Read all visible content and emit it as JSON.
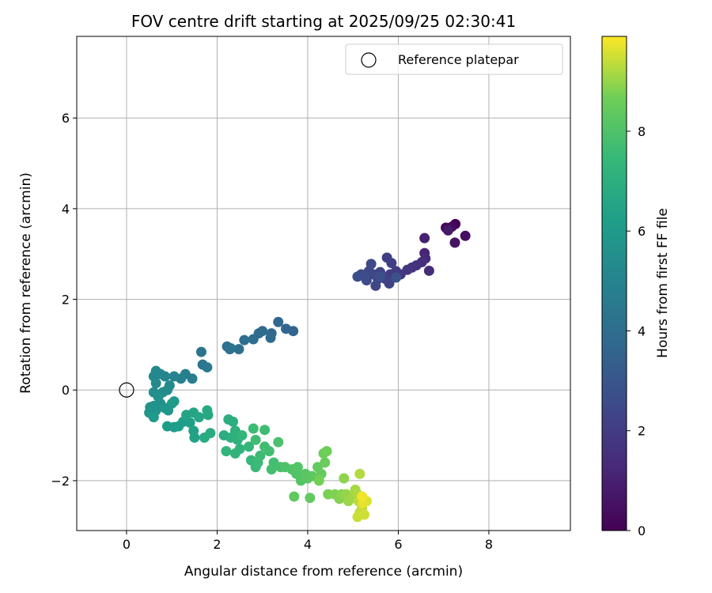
{
  "chart_data": {
    "type": "scatter",
    "title": "FOV centre drift starting at 2025/09/25 02:30:41",
    "xlabel": "Angular distance from reference (arcmin)",
    "ylabel": "Rotation from reference (arcmin)",
    "xlim": [
      -1.1,
      9.8
    ],
    "ylim": [
      -3.1,
      7.8
    ],
    "xticks": [
      0,
      2,
      4,
      6,
      8
    ],
    "yticks": [
      -2,
      0,
      2,
      4,
      6
    ],
    "xtick_labels": [
      "0",
      "2",
      "4",
      "6",
      "8"
    ],
    "ytick_labels": [
      "−2",
      "0",
      "2",
      "4",
      "6"
    ],
    "grid": true,
    "legend": {
      "placement": "top-right",
      "entries": [
        "Reference platepar"
      ]
    },
    "reference_point": {
      "x": 0.0,
      "y": 0.0,
      "label": "Reference platepar"
    },
    "colorbar": {
      "label": "Hours from first FF file",
      "range": [
        0,
        9.9
      ],
      "ticks": [
        0,
        2,
        4,
        6,
        8
      ],
      "tick_labels": [
        "0",
        "2",
        "4",
        "6",
        "8"
      ],
      "colormap": "viridis"
    },
    "points": [
      {
        "x": 7.26,
        "y": 3.66,
        "c": 0.0
      },
      {
        "x": 7.05,
        "y": 3.58,
        "c": 0.15
      },
      {
        "x": 7.18,
        "y": 3.6,
        "c": 0.3
      },
      {
        "x": 7.48,
        "y": 3.4,
        "c": 0.45
      },
      {
        "x": 7.25,
        "y": 3.25,
        "c": 0.6
      },
      {
        "x": 7.1,
        "y": 3.52,
        "c": 0.75
      },
      {
        "x": 6.58,
        "y": 3.35,
        "c": 1.0
      },
      {
        "x": 6.58,
        "y": 3.02,
        "c": 1.15
      },
      {
        "x": 6.6,
        "y": 2.9,
        "c": 1.3
      },
      {
        "x": 6.68,
        "y": 2.63,
        "c": 1.4
      },
      {
        "x": 6.52,
        "y": 2.82,
        "c": 1.5
      },
      {
        "x": 6.4,
        "y": 2.75,
        "c": 1.6
      },
      {
        "x": 6.3,
        "y": 2.7,
        "c": 1.7
      },
      {
        "x": 6.2,
        "y": 2.65,
        "c": 1.75
      },
      {
        "x": 6.05,
        "y": 2.55,
        "c": 1.85
      },
      {
        "x": 5.95,
        "y": 2.62,
        "c": 1.9
      },
      {
        "x": 5.82,
        "y": 2.55,
        "c": 2.0
      },
      {
        "x": 5.75,
        "y": 2.92,
        "c": 2.05
      },
      {
        "x": 5.85,
        "y": 2.8,
        "c": 2.1
      },
      {
        "x": 5.72,
        "y": 2.45,
        "c": 2.15
      },
      {
        "x": 5.8,
        "y": 2.35,
        "c": 2.2
      },
      {
        "x": 5.6,
        "y": 2.6,
        "c": 2.25
      },
      {
        "x": 5.55,
        "y": 2.45,
        "c": 2.3
      },
      {
        "x": 5.5,
        "y": 2.3,
        "c": 2.35
      },
      {
        "x": 5.45,
        "y": 2.55,
        "c": 2.4
      },
      {
        "x": 5.35,
        "y": 2.62,
        "c": 2.45
      },
      {
        "x": 5.4,
        "y": 2.78,
        "c": 2.5
      },
      {
        "x": 5.3,
        "y": 2.42,
        "c": 2.55
      },
      {
        "x": 5.25,
        "y": 2.5,
        "c": 2.6
      },
      {
        "x": 5.18,
        "y": 2.55,
        "c": 2.65
      },
      {
        "x": 5.1,
        "y": 2.5,
        "c": 2.7
      },
      {
        "x": 5.6,
        "y": 2.5,
        "c": 2.75
      },
      {
        "x": 5.95,
        "y": 2.48,
        "c": 2.8
      },
      {
        "x": 3.68,
        "y": 1.3,
        "c": 3.6
      },
      {
        "x": 3.52,
        "y": 1.35,
        "c": 3.65
      },
      {
        "x": 3.35,
        "y": 1.5,
        "c": 3.7
      },
      {
        "x": 3.2,
        "y": 1.25,
        "c": 3.75
      },
      {
        "x": 3.18,
        "y": 1.15,
        "c": 3.8
      },
      {
        "x": 3.0,
        "y": 1.3,
        "c": 3.85
      },
      {
        "x": 2.92,
        "y": 1.25,
        "c": 3.9
      },
      {
        "x": 2.8,
        "y": 1.12,
        "c": 3.95
      },
      {
        "x": 2.6,
        "y": 1.1,
        "c": 4.0
      },
      {
        "x": 2.48,
        "y": 0.9,
        "c": 4.05
      },
      {
        "x": 2.28,
        "y": 0.9,
        "c": 4.1
      },
      {
        "x": 2.22,
        "y": 0.96,
        "c": 4.15
      },
      {
        "x": 2.3,
        "y": 0.92,
        "c": 4.2
      },
      {
        "x": 1.65,
        "y": 0.84,
        "c": 4.3
      },
      {
        "x": 1.68,
        "y": 0.56,
        "c": 4.4
      },
      {
        "x": 1.78,
        "y": 0.5,
        "c": 4.5
      },
      {
        "x": 1.45,
        "y": 0.25,
        "c": 4.7
      },
      {
        "x": 1.3,
        "y": 0.35,
        "c": 4.8
      },
      {
        "x": 1.2,
        "y": 0.25,
        "c": 4.9
      },
      {
        "x": 1.05,
        "y": 0.3,
        "c": 5.0
      },
      {
        "x": 0.85,
        "y": 0.3,
        "c": 5.1
      },
      {
        "x": 0.75,
        "y": 0.35,
        "c": 5.15
      },
      {
        "x": 0.65,
        "y": 0.42,
        "c": 5.2
      },
      {
        "x": 0.6,
        "y": 0.3,
        "c": 5.25
      },
      {
        "x": 0.65,
        "y": 0.15,
        "c": 5.3
      },
      {
        "x": 0.95,
        "y": 0.1,
        "c": 5.35
      },
      {
        "x": 0.9,
        "y": 0.0,
        "c": 5.4
      },
      {
        "x": 0.8,
        "y": -0.05,
        "c": 5.45
      },
      {
        "x": 0.6,
        "y": -0.05,
        "c": 5.5
      },
      {
        "x": 0.7,
        "y": -0.15,
        "c": 5.55
      },
      {
        "x": 0.75,
        "y": -0.3,
        "c": 5.6
      },
      {
        "x": 0.6,
        "y": -0.35,
        "c": 5.65
      },
      {
        "x": 0.52,
        "y": -0.38,
        "c": 5.7
      },
      {
        "x": 0.5,
        "y": -0.5,
        "c": 5.75
      },
      {
        "x": 0.65,
        "y": -0.45,
        "c": 5.8
      },
      {
        "x": 0.85,
        "y": -0.4,
        "c": 5.85
      },
      {
        "x": 0.92,
        "y": -0.45,
        "c": 5.9
      },
      {
        "x": 1.0,
        "y": -0.3,
        "c": 5.95
      },
      {
        "x": 1.05,
        "y": -0.25,
        "c": 6.0
      },
      {
        "x": 0.6,
        "y": -0.6,
        "c": 6.05
      },
      {
        "x": 0.9,
        "y": -0.8,
        "c": 6.1
      },
      {
        "x": 1.05,
        "y": -0.82,
        "c": 6.15
      },
      {
        "x": 1.15,
        "y": -0.8,
        "c": 6.2
      },
      {
        "x": 1.25,
        "y": -0.7,
        "c": 6.25
      },
      {
        "x": 1.4,
        "y": -0.72,
        "c": 6.3
      },
      {
        "x": 1.48,
        "y": -0.9,
        "c": 6.35
      },
      {
        "x": 1.5,
        "y": -1.05,
        "c": 6.4
      },
      {
        "x": 1.32,
        "y": -0.55,
        "c": 6.45
      },
      {
        "x": 1.48,
        "y": -0.5,
        "c": 6.5
      },
      {
        "x": 1.6,
        "y": -0.6,
        "c": 6.6
      },
      {
        "x": 1.8,
        "y": -0.55,
        "c": 6.7
      },
      {
        "x": 1.78,
        "y": -0.45,
        "c": 6.75
      },
      {
        "x": 1.72,
        "y": -1.05,
        "c": 6.8
      },
      {
        "x": 1.85,
        "y": -0.95,
        "c": 6.85
      },
      {
        "x": 2.15,
        "y": -1.0,
        "c": 6.9
      },
      {
        "x": 2.25,
        "y": -0.65,
        "c": 6.95
      },
      {
        "x": 2.35,
        "y": -0.7,
        "c": 7.0
      },
      {
        "x": 2.3,
        "y": -1.05,
        "c": 7.05
      },
      {
        "x": 2.4,
        "y": -0.9,
        "c": 7.1
      },
      {
        "x": 2.45,
        "y": -1.1,
        "c": 7.15
      },
      {
        "x": 2.5,
        "y": -1.3,
        "c": 7.2
      },
      {
        "x": 2.4,
        "y": -1.4,
        "c": 7.25
      },
      {
        "x": 2.2,
        "y": -1.35,
        "c": 7.3
      },
      {
        "x": 2.55,
        "y": -1.0,
        "c": 7.35
      },
      {
        "x": 2.7,
        "y": -1.25,
        "c": 7.4
      },
      {
        "x": 2.75,
        "y": -1.55,
        "c": 7.45
      },
      {
        "x": 2.85,
        "y": -1.7,
        "c": 7.5
      },
      {
        "x": 2.9,
        "y": -1.6,
        "c": 7.55
      },
      {
        "x": 2.95,
        "y": -1.45,
        "c": 7.6
      },
      {
        "x": 2.8,
        "y": -0.85,
        "c": 7.62
      },
      {
        "x": 3.05,
        "y": -0.88,
        "c": 7.64
      },
      {
        "x": 2.85,
        "y": -1.1,
        "c": 7.66
      },
      {
        "x": 3.05,
        "y": -1.25,
        "c": 7.68
      },
      {
        "x": 3.15,
        "y": -1.35,
        "c": 7.7
      },
      {
        "x": 3.25,
        "y": -1.6,
        "c": 7.75
      },
      {
        "x": 3.2,
        "y": -1.75,
        "c": 7.8
      },
      {
        "x": 3.4,
        "y": -1.7,
        "c": 7.85
      },
      {
        "x": 3.35,
        "y": -1.15,
        "c": 7.9
      },
      {
        "x": 3.5,
        "y": -1.7,
        "c": 7.95
      },
      {
        "x": 3.65,
        "y": -1.75,
        "c": 8.0
      },
      {
        "x": 3.75,
        "y": -1.85,
        "c": 8.05
      },
      {
        "x": 3.78,
        "y": -1.7,
        "c": 8.1
      },
      {
        "x": 3.85,
        "y": -2.0,
        "c": 8.15
      },
      {
        "x": 3.95,
        "y": -1.85,
        "c": 8.2
      },
      {
        "x": 4.0,
        "y": -1.95,
        "c": 8.25
      },
      {
        "x": 4.1,
        "y": -1.9,
        "c": 8.3
      },
      {
        "x": 3.7,
        "y": -2.35,
        "c": 8.35
      },
      {
        "x": 4.05,
        "y": -2.38,
        "c": 8.4
      },
      {
        "x": 4.22,
        "y": -1.7,
        "c": 8.45
      },
      {
        "x": 4.3,
        "y": -1.85,
        "c": 8.5
      },
      {
        "x": 4.38,
        "y": -1.6,
        "c": 8.55
      },
      {
        "x": 4.35,
        "y": -1.4,
        "c": 8.6
      },
      {
        "x": 4.42,
        "y": -1.35,
        "c": 8.65
      },
      {
        "x": 4.25,
        "y": -2.0,
        "c": 8.7
      },
      {
        "x": 4.45,
        "y": -2.3,
        "c": 8.75
      },
      {
        "x": 4.6,
        "y": -2.3,
        "c": 8.8
      },
      {
        "x": 4.7,
        "y": -2.4,
        "c": 8.85
      },
      {
        "x": 4.75,
        "y": -2.3,
        "c": 8.9
      },
      {
        "x": 4.8,
        "y": -1.95,
        "c": 8.95
      },
      {
        "x": 4.85,
        "y": -2.3,
        "c": 9.0
      },
      {
        "x": 4.9,
        "y": -2.45,
        "c": 9.05
      },
      {
        "x": 5.0,
        "y": -2.35,
        "c": 9.1
      },
      {
        "x": 5.05,
        "y": -2.2,
        "c": 9.15
      },
      {
        "x": 5.1,
        "y": -2.3,
        "c": 9.2
      },
      {
        "x": 5.15,
        "y": -1.85,
        "c": 9.25
      },
      {
        "x": 5.12,
        "y": -2.45,
        "c": 9.3
      },
      {
        "x": 5.2,
        "y": -2.6,
        "c": 9.35
      },
      {
        "x": 5.15,
        "y": -2.7,
        "c": 9.4
      },
      {
        "x": 5.1,
        "y": -2.8,
        "c": 9.45
      },
      {
        "x": 5.25,
        "y": -2.75,
        "c": 9.5
      },
      {
        "x": 5.3,
        "y": -2.45,
        "c": 9.6
      },
      {
        "x": 5.22,
        "y": -2.5,
        "c": 9.7
      },
      {
        "x": 5.2,
        "y": -2.35,
        "c": 9.8
      }
    ]
  }
}
